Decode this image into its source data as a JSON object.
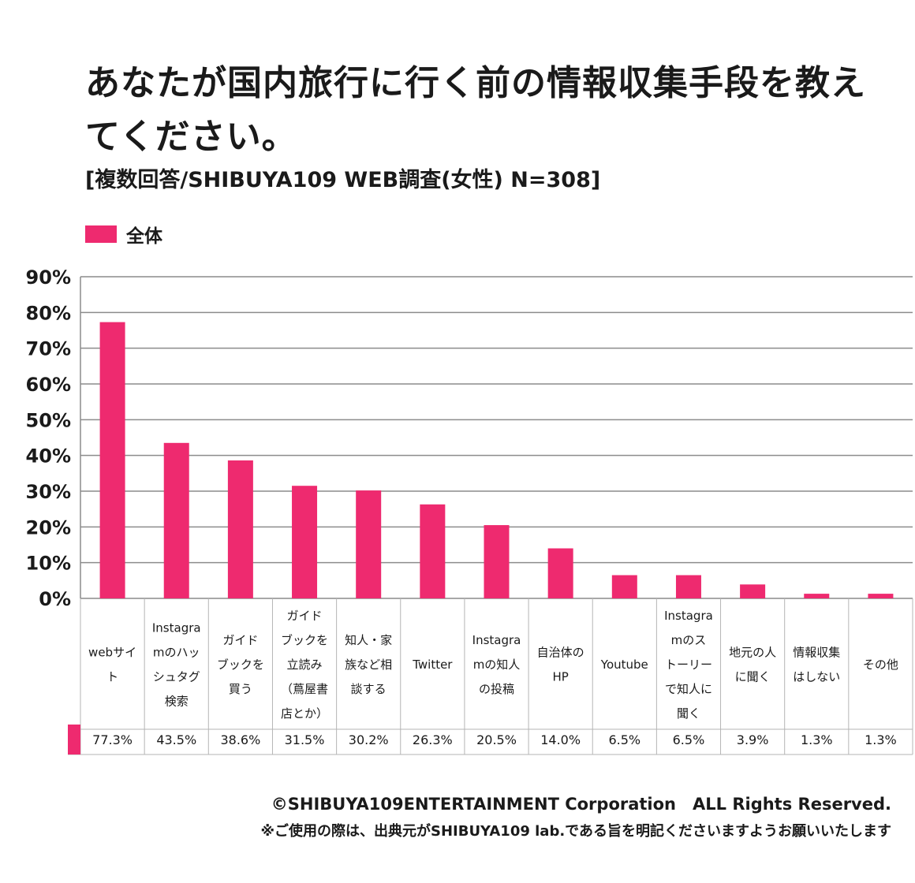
{
  "header": {
    "title": "あなたが国内旅行に行く前の情報収集手段を教えてください。",
    "subtitle": "[複数回答/SHIBUYA109 WEB調査(女性) N=308]"
  },
  "legend": {
    "label": "全体",
    "color": "#EE2A6F"
  },
  "chart_data": {
    "type": "bar",
    "title": "あなたが国内旅行に行く前の情報収集手段を教えてください。",
    "subtitle": "[複数回答/SHIBUYA109 WEB調査(女性) N=308]",
    "xlabel": "",
    "ylabel": "",
    "ylim": [
      0,
      90
    ],
    "yticks": [
      0,
      10,
      20,
      30,
      40,
      50,
      60,
      70,
      80,
      90
    ],
    "ytick_labels": [
      "0%",
      "10%",
      "20%",
      "30%",
      "40%",
      "50%",
      "60%",
      "70%",
      "80%",
      "90%"
    ],
    "grid": true,
    "legend_position": "top-left",
    "categories": [
      [
        "webサイ",
        "ト"
      ],
      [
        "Instagra",
        "mのハッ",
        "シュタグ",
        "検索"
      ],
      [
        "ガイド",
        "ブックを",
        "買う"
      ],
      [
        "ガイド",
        "ブックを",
        "立読み",
        "（蔦屋書",
        "店とか）"
      ],
      [
        "知人・家",
        "族など相",
        "談する"
      ],
      [
        "Twitter"
      ],
      [
        "Instagra",
        "mの知人",
        "の投稿"
      ],
      [
        "自治体の",
        "HP"
      ],
      [
        "Youtube"
      ],
      [
        "Instagra",
        "mのス",
        "トーリー",
        "で知人に",
        "聞く"
      ],
      [
        "地元の人",
        "に聞く"
      ],
      [
        "情報収集",
        "はしない"
      ],
      [
        "その他"
      ]
    ],
    "series": [
      {
        "name": "全体",
        "color": "#EE2A6F",
        "values": [
          77.3,
          43.5,
          38.6,
          31.5,
          30.2,
          26.3,
          20.5,
          14.0,
          6.5,
          6.5,
          3.9,
          1.3,
          1.3
        ],
        "value_labels": [
          "77.3%",
          "43.5%",
          "38.6%",
          "31.5%",
          "30.2%",
          "26.3%",
          "20.5%",
          "14.0%",
          "6.5%",
          "6.5%",
          "3.9%",
          "1.3%",
          "1.3%"
        ]
      }
    ]
  },
  "footer": {
    "copyright": "©SHIBUYA109ENTERTAINMENT Corporation　ALL Rights Reserved.",
    "note": "※ご使用の際は、出典元がSHIBUYA109 lab.である旨を明記くださいますようお願いいたします"
  }
}
